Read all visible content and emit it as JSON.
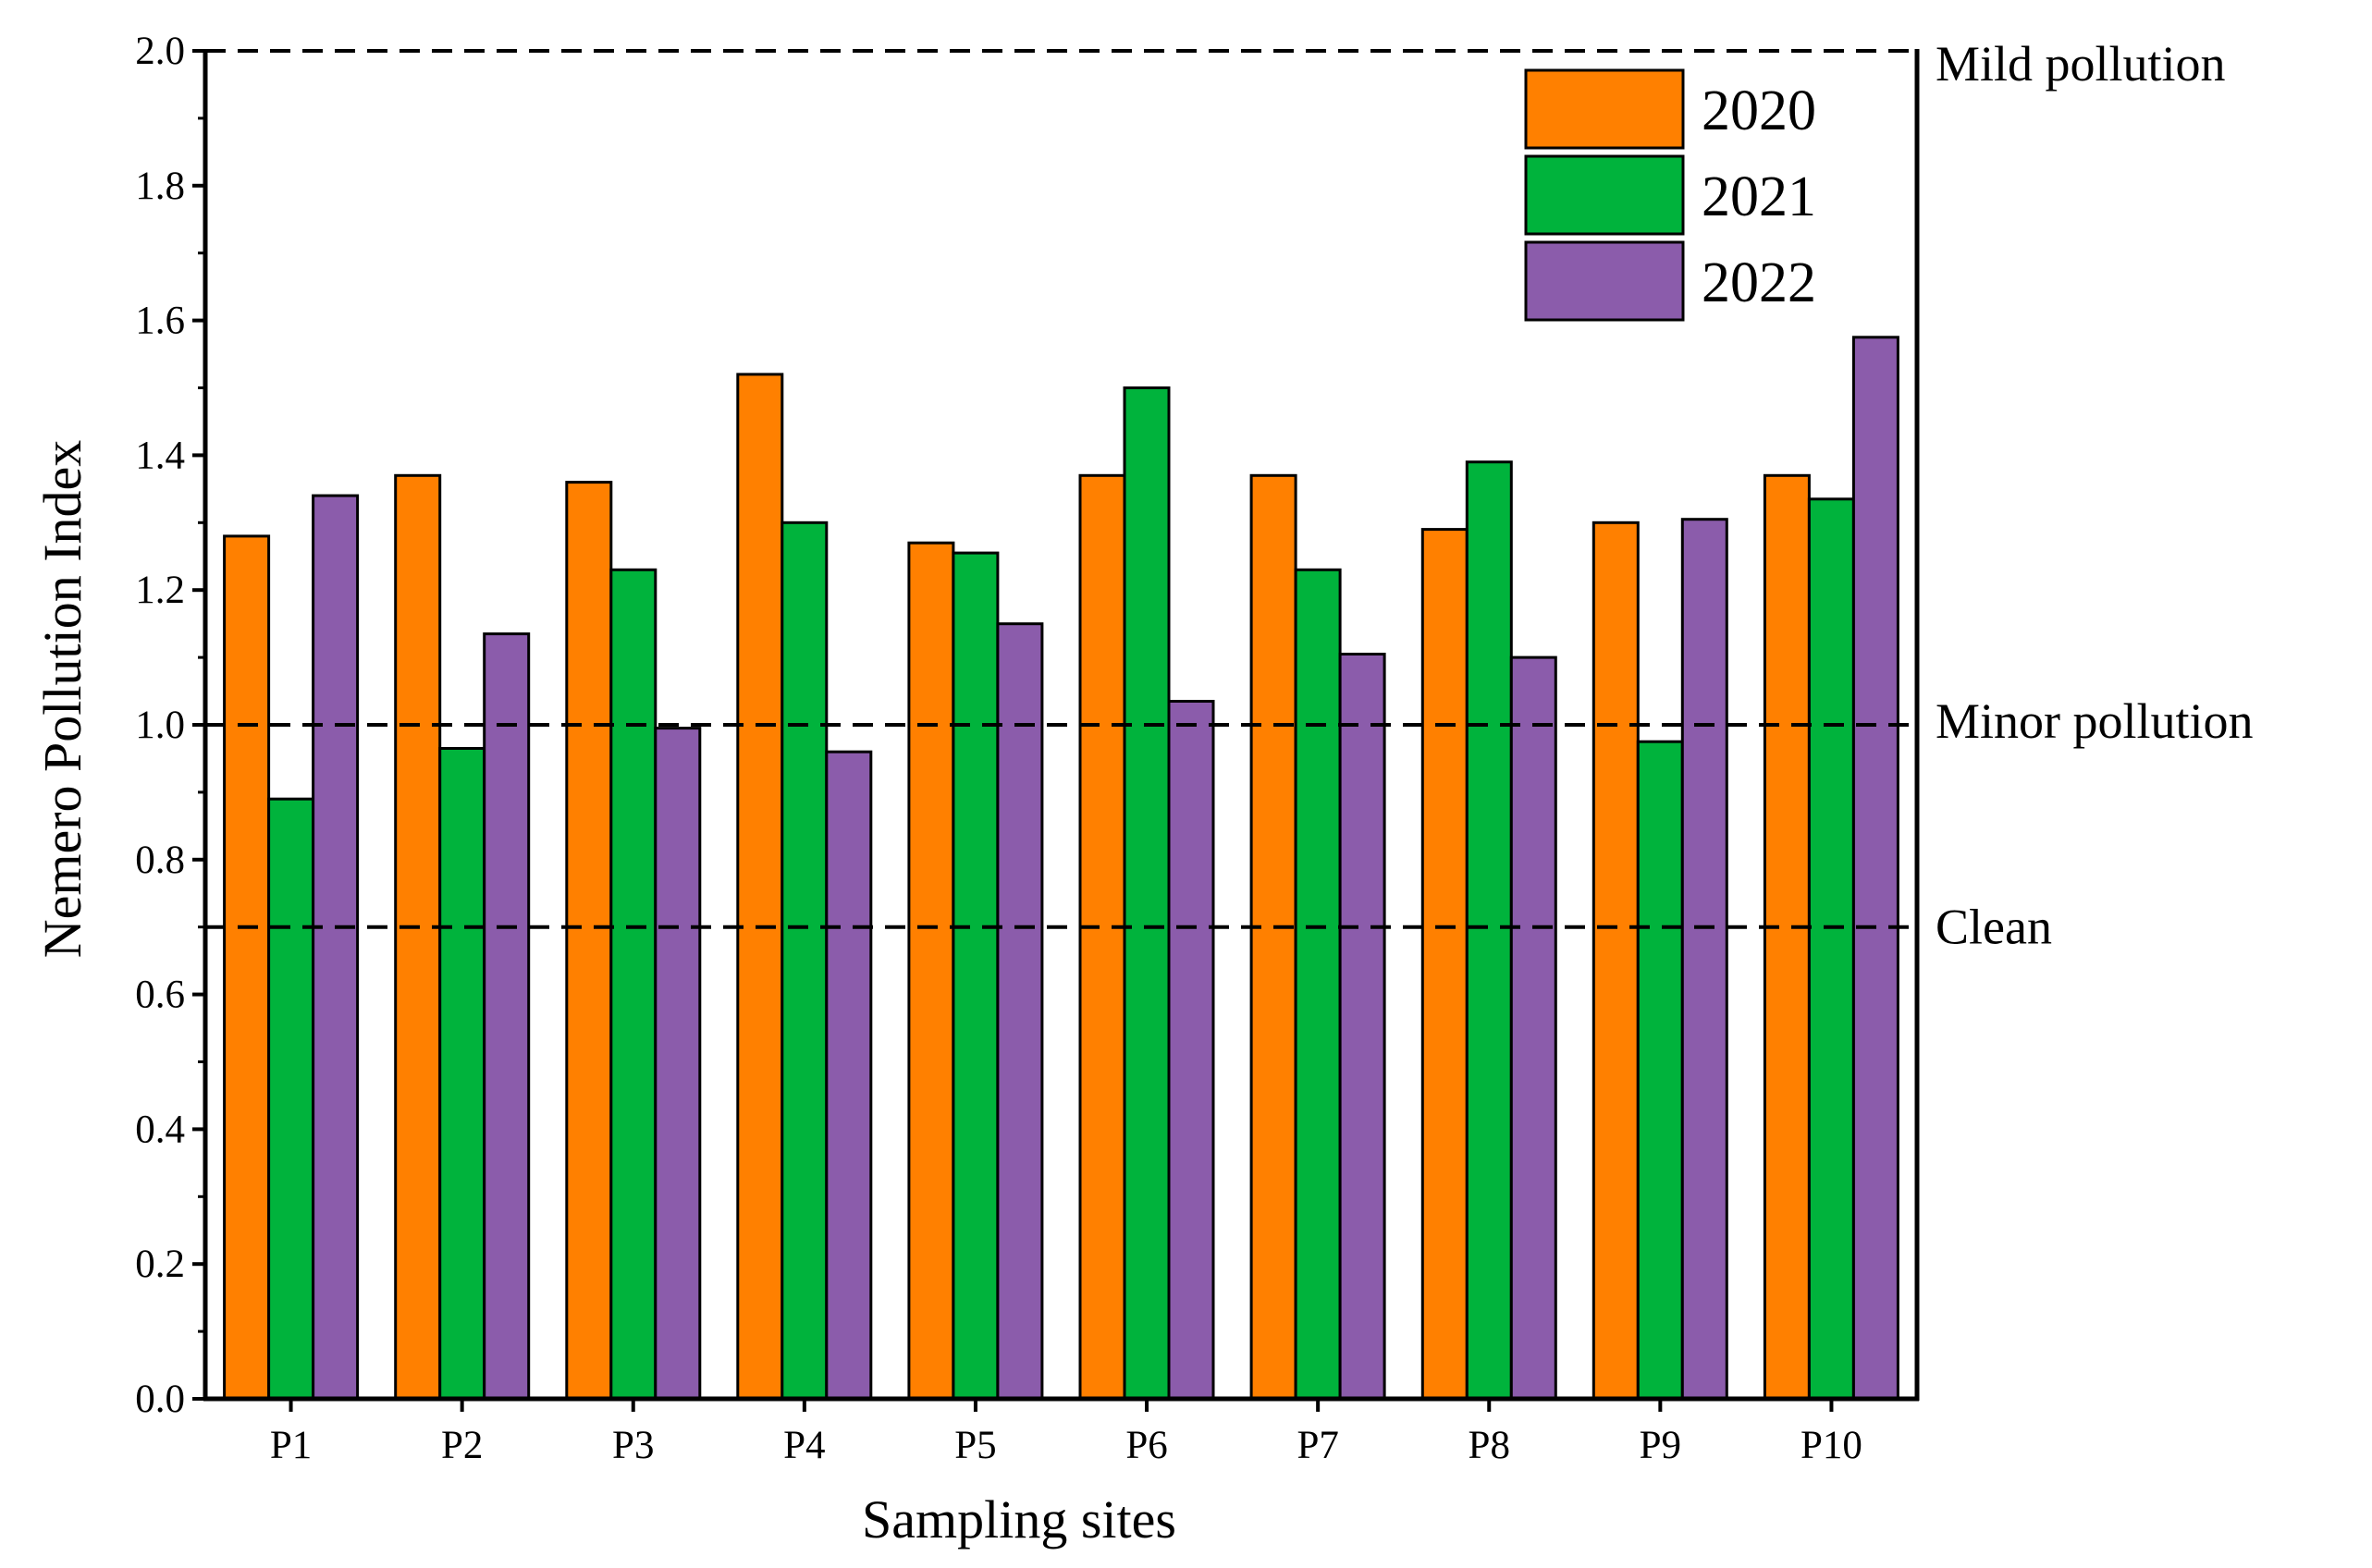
{
  "chart_data": {
    "type": "bar",
    "xlabel": "Sampling sites",
    "ylabel": "Nemero Pollution Index",
    "ylim": [
      0,
      2.0
    ],
    "yticks": [
      "0.0",
      "0.2",
      "0.4",
      "0.6",
      "0.8",
      "1.0",
      "1.2",
      "1.4",
      "1.6",
      "1.8",
      "2.0"
    ],
    "categories": [
      "P1",
      "P2",
      "P3",
      "P4",
      "P5",
      "P6",
      "P7",
      "P8",
      "P9",
      "P10"
    ],
    "series": [
      {
        "name": "2020",
        "color": "#FF8000",
        "values": [
          1.28,
          1.37,
          1.36,
          1.52,
          1.27,
          1.37,
          1.37,
          1.29,
          1.3,
          1.37
        ]
      },
      {
        "name": "2021",
        "color": "#00B33C",
        "values": [
          0.89,
          0.965,
          1.23,
          1.3,
          1.255,
          1.5,
          1.23,
          1.39,
          0.975,
          1.335
        ]
      },
      {
        "name": "2022",
        "color": "#8B5CAB",
        "values": [
          1.34,
          1.135,
          0.995,
          0.96,
          1.15,
          1.035,
          1.105,
          1.1,
          1.305,
          1.575
        ]
      }
    ],
    "reference_lines": [
      {
        "value": 2.0,
        "label": "Mild pollution"
      },
      {
        "value": 1.0,
        "label": "Minor pollution"
      },
      {
        "value": 0.7,
        "label": "Clean"
      }
    ],
    "legend_position": "top-right",
    "grid": false
  }
}
